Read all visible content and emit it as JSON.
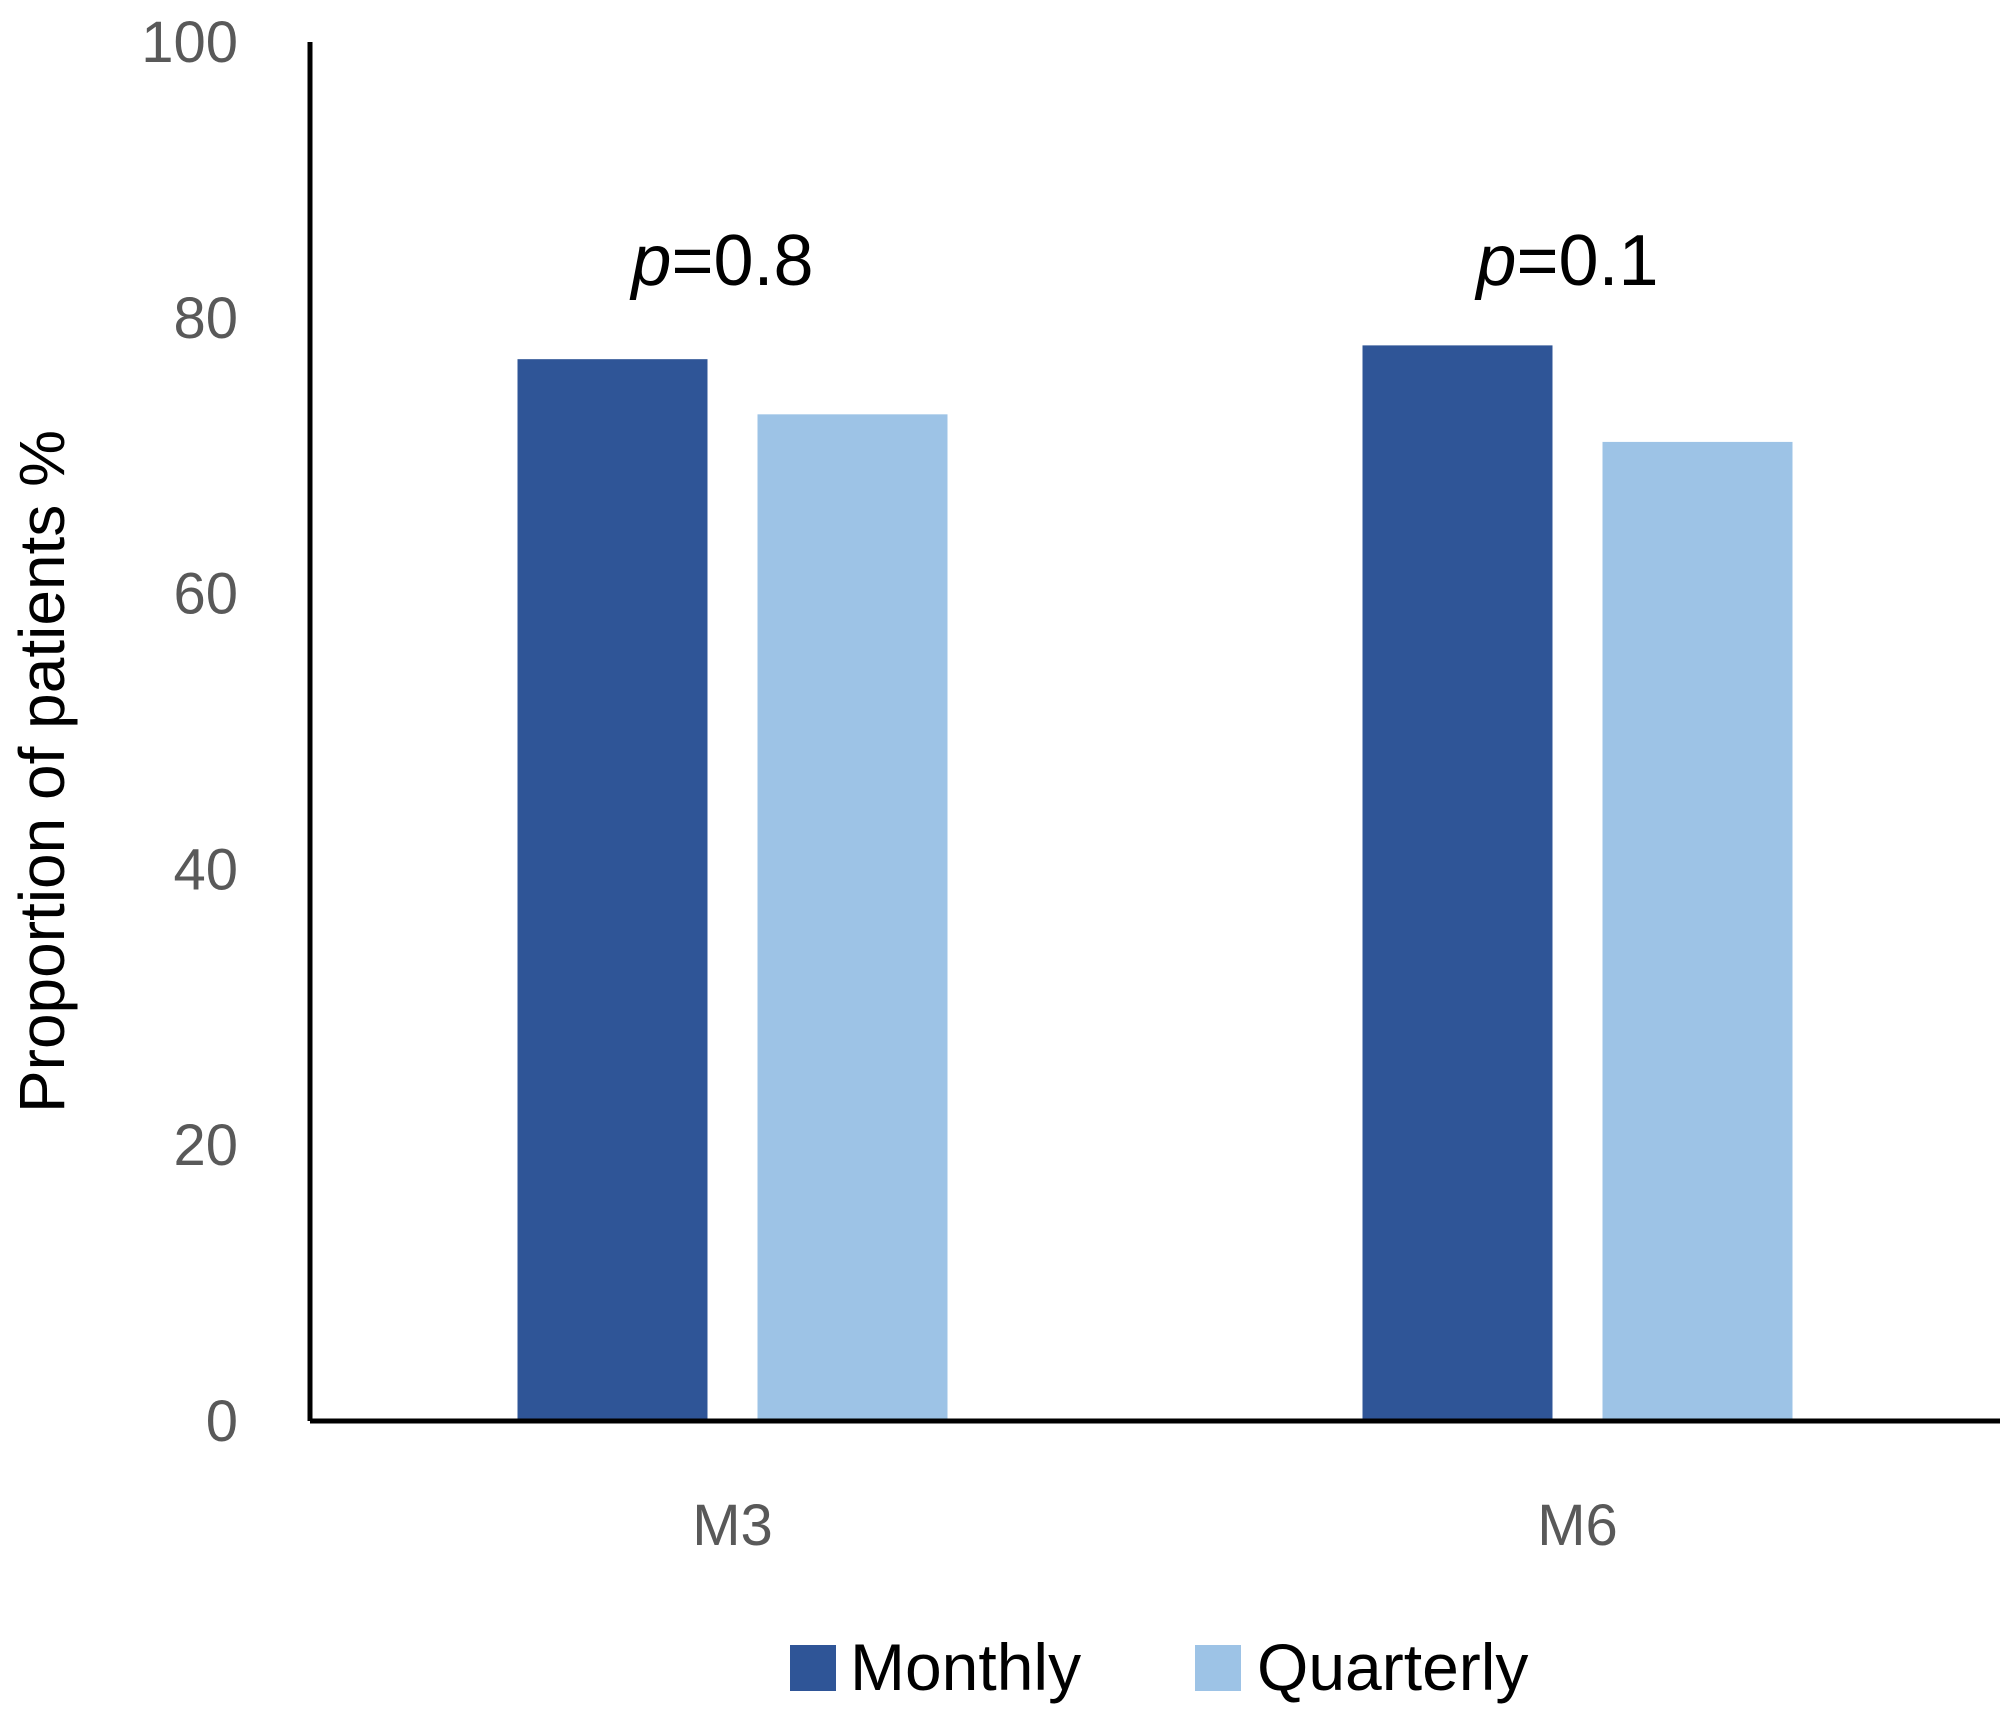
{
  "chart_data": {
    "type": "bar",
    "categories": [
      "M3",
      "M6"
    ],
    "series": [
      {
        "name": "Monthly",
        "values": [
          77,
          78
        ],
        "color": "#2f5597"
      },
      {
        "name": "Quarterly",
        "values": [
          73,
          71
        ],
        "color": "#9dc3e6"
      }
    ],
    "title": "",
    "xlabel": "",
    "ylabel": "Proportion of patients %",
    "ylim": [
      0,
      100
    ],
    "yticks": [
      "0",
      "20",
      "40",
      "60",
      "80",
      "100"
    ],
    "annotations": [
      {
        "category": "M3",
        "italic": "p",
        "text": "=0.8"
      },
      {
        "category": "M6",
        "italic": "p",
        "text": "=0.1"
      }
    ],
    "legend": {
      "position": "bottom"
    },
    "grid": false
  }
}
